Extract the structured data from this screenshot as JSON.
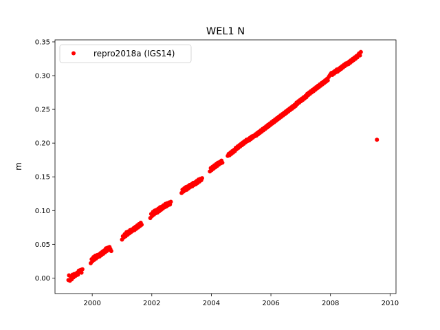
{
  "chart_data": {
    "type": "scatter",
    "title": "WEL1 N",
    "xlabel": "",
    "ylabel": "m",
    "xlim": [
      1998.75,
      2010.2
    ],
    "ylim": [
      -0.023,
      0.353
    ],
    "xticks": [
      2000,
      2002,
      2004,
      2006,
      2008,
      2010
    ],
    "xtick_labels": [
      "2000",
      "2002",
      "2004",
      "2006",
      "2008",
      "2010"
    ],
    "yticks": [
      0.0,
      0.05,
      0.1,
      0.15,
      0.2,
      0.25,
      0.3,
      0.35
    ],
    "ytick_labels": [
      "0.00",
      "0.05",
      "0.10",
      "0.15",
      "0.20",
      "0.25",
      "0.30",
      "0.35"
    ],
    "grid": false,
    "legend_position": "top-left",
    "series": [
      {
        "name": "repro2018a (IGS14)",
        "color": "#ff0000",
        "marker": "circle",
        "points": [
          [
            1999.2,
            -0.003
          ],
          [
            1999.22,
            0.004
          ],
          [
            1999.25,
            -0.004
          ],
          [
            1999.28,
            0.002
          ],
          [
            1999.31,
            -0.002
          ],
          [
            1999.34,
            0.005
          ],
          [
            1999.37,
            0.001
          ],
          [
            1999.4,
            0.006
          ],
          [
            1999.43,
            0.003
          ],
          [
            1999.46,
            0.004
          ],
          [
            1999.49,
            0.008
          ],
          [
            1999.52,
            0.005
          ],
          [
            1999.55,
            0.011
          ],
          [
            1999.58,
            0.009
          ],
          [
            1999.61,
            0.012
          ],
          [
            1999.64,
            0.008
          ],
          [
            1999.67,
            0.013
          ],
          [
            1999.95,
            0.022
          ],
          [
            1999.98,
            0.028
          ],
          [
            2000.01,
            0.025
          ],
          [
            2000.04,
            0.031
          ],
          [
            2000.07,
            0.027
          ],
          [
            2000.1,
            0.033
          ],
          [
            2000.13,
            0.029
          ],
          [
            2000.16,
            0.034
          ],
          [
            2000.19,
            0.031
          ],
          [
            2000.22,
            0.035
          ],
          [
            2000.25,
            0.032
          ],
          [
            2000.28,
            0.037
          ],
          [
            2000.31,
            0.034
          ],
          [
            2000.34,
            0.039
          ],
          [
            2000.37,
            0.036
          ],
          [
            2000.4,
            0.041
          ],
          [
            2000.43,
            0.038
          ],
          [
            2000.46,
            0.044
          ],
          [
            2000.49,
            0.04
          ],
          [
            2000.52,
            0.045
          ],
          [
            2000.55,
            0.042
          ],
          [
            2000.58,
            0.046
          ],
          [
            2000.61,
            0.043
          ],
          [
            2000.64,
            0.04
          ],
          [
            2001.0,
            0.057
          ],
          [
            2001.03,
            0.062
          ],
          [
            2001.06,
            0.06
          ],
          [
            2001.09,
            0.065
          ],
          [
            2001.12,
            0.062
          ],
          [
            2001.15,
            0.068
          ],
          [
            2001.18,
            0.064
          ],
          [
            2001.21,
            0.069
          ],
          [
            2001.24,
            0.066
          ],
          [
            2001.27,
            0.071
          ],
          [
            2001.3,
            0.068
          ],
          [
            2001.33,
            0.072
          ],
          [
            2001.36,
            0.07
          ],
          [
            2001.39,
            0.074
          ],
          [
            2001.42,
            0.071
          ],
          [
            2001.45,
            0.076
          ],
          [
            2001.48,
            0.073
          ],
          [
            2001.51,
            0.078
          ],
          [
            2001.54,
            0.075
          ],
          [
            2001.57,
            0.08
          ],
          [
            2001.6,
            0.077
          ],
          [
            2001.63,
            0.082
          ],
          [
            2001.66,
            0.079
          ],
          [
            2001.95,
            0.089
          ],
          [
            2001.98,
            0.095
          ],
          [
            2002.01,
            0.092
          ],
          [
            2002.04,
            0.098
          ],
          [
            2002.07,
            0.094
          ],
          [
            2002.1,
            0.1
          ],
          [
            2002.13,
            0.096
          ],
          [
            2002.16,
            0.101
          ],
          [
            2002.19,
            0.097
          ],
          [
            2002.22,
            0.103
          ],
          [
            2002.25,
            0.099
          ],
          [
            2002.28,
            0.105
          ],
          [
            2002.31,
            0.101
          ],
          [
            2002.34,
            0.106
          ],
          [
            2002.37,
            0.103
          ],
          [
            2002.4,
            0.108
          ],
          [
            2002.43,
            0.105
          ],
          [
            2002.46,
            0.11
          ],
          [
            2002.49,
            0.106
          ],
          [
            2002.52,
            0.111
          ],
          [
            2002.55,
            0.108
          ],
          [
            2002.58,
            0.112
          ],
          [
            2002.61,
            0.109
          ],
          [
            2002.64,
            0.113
          ],
          [
            2003.0,
            0.126
          ],
          [
            2003.03,
            0.131
          ],
          [
            2003.06,
            0.128
          ],
          [
            2003.09,
            0.133
          ],
          [
            2003.12,
            0.13
          ],
          [
            2003.15,
            0.135
          ],
          [
            2003.18,
            0.131
          ],
          [
            2003.21,
            0.136
          ],
          [
            2003.24,
            0.133
          ],
          [
            2003.27,
            0.138
          ],
          [
            2003.3,
            0.135
          ],
          [
            2003.33,
            0.139
          ],
          [
            2003.36,
            0.136
          ],
          [
            2003.39,
            0.141
          ],
          [
            2003.42,
            0.138
          ],
          [
            2003.45,
            0.142
          ],
          [
            2003.48,
            0.139
          ],
          [
            2003.51,
            0.144
          ],
          [
            2003.54,
            0.141
          ],
          [
            2003.57,
            0.146
          ],
          [
            2003.6,
            0.143
          ],
          [
            2003.63,
            0.147
          ],
          [
            2003.66,
            0.145
          ],
          [
            2003.69,
            0.148
          ],
          [
            2003.95,
            0.158
          ],
          [
            2003.98,
            0.163
          ],
          [
            2004.01,
            0.16
          ],
          [
            2004.04,
            0.165
          ],
          [
            2004.07,
            0.162
          ],
          [
            2004.1,
            0.167
          ],
          [
            2004.13,
            0.164
          ],
          [
            2004.16,
            0.169
          ],
          [
            2004.19,
            0.166
          ],
          [
            2004.22,
            0.171
          ],
          [
            2004.25,
            0.168
          ],
          [
            2004.28,
            0.172
          ],
          [
            2004.31,
            0.17
          ],
          [
            2004.34,
            0.174
          ],
          [
            2004.37,
            0.171
          ],
          [
            2004.55,
            0.181
          ],
          [
            2004.58,
            0.184
          ],
          [
            2004.61,
            0.182
          ],
          [
            2004.64,
            0.186
          ],
          [
            2004.67,
            0.184
          ],
          [
            2004.7,
            0.188
          ],
          [
            2004.73,
            0.186
          ],
          [
            2004.76,
            0.19
          ],
          [
            2004.79,
            0.188
          ],
          [
            2004.82,
            0.193
          ],
          [
            2004.85,
            0.191
          ],
          [
            2004.88,
            0.195
          ],
          [
            2004.91,
            0.193
          ],
          [
            2004.94,
            0.197
          ],
          [
            2004.97,
            0.195
          ],
          [
            2005.0,
            0.199
          ],
          [
            2005.03,
            0.197
          ],
          [
            2005.06,
            0.201
          ],
          [
            2005.09,
            0.199
          ],
          [
            2005.12,
            0.203
          ],
          [
            2005.15,
            0.201
          ],
          [
            2005.18,
            0.205
          ],
          [
            2005.21,
            0.203
          ],
          [
            2005.24,
            0.206
          ],
          [
            2005.27,
            0.204
          ],
          [
            2005.3,
            0.208
          ],
          [
            2005.33,
            0.206
          ],
          [
            2005.36,
            0.21
          ],
          [
            2005.39,
            0.208
          ],
          [
            2005.42,
            0.211
          ],
          [
            2005.45,
            0.21
          ],
          [
            2005.48,
            0.213
          ],
          [
            2005.51,
            0.211
          ],
          [
            2005.54,
            0.215
          ],
          [
            2005.57,
            0.213
          ],
          [
            2005.6,
            0.217
          ],
          [
            2005.63,
            0.215
          ],
          [
            2005.66,
            0.219
          ],
          [
            2005.69,
            0.217
          ],
          [
            2005.72,
            0.221
          ],
          [
            2005.75,
            0.219
          ],
          [
            2005.78,
            0.223
          ],
          [
            2005.81,
            0.221
          ],
          [
            2005.84,
            0.225
          ],
          [
            2005.87,
            0.223
          ],
          [
            2005.9,
            0.227
          ],
          [
            2005.93,
            0.225
          ],
          [
            2005.96,
            0.229
          ],
          [
            2005.99,
            0.227
          ],
          [
            2006.02,
            0.231
          ],
          [
            2006.05,
            0.229
          ],
          [
            2006.08,
            0.233
          ],
          [
            2006.11,
            0.231
          ],
          [
            2006.14,
            0.235
          ],
          [
            2006.17,
            0.233
          ],
          [
            2006.2,
            0.237
          ],
          [
            2006.23,
            0.235
          ],
          [
            2006.26,
            0.239
          ],
          [
            2006.29,
            0.237
          ],
          [
            2006.32,
            0.241
          ],
          [
            2006.35,
            0.239
          ],
          [
            2006.38,
            0.243
          ],
          [
            2006.41,
            0.241
          ],
          [
            2006.44,
            0.245
          ],
          [
            2006.47,
            0.243
          ],
          [
            2006.5,
            0.247
          ],
          [
            2006.53,
            0.245
          ],
          [
            2006.56,
            0.249
          ],
          [
            2006.59,
            0.247
          ],
          [
            2006.62,
            0.251
          ],
          [
            2006.65,
            0.249
          ],
          [
            2006.68,
            0.253
          ],
          [
            2006.71,
            0.251
          ],
          [
            2006.74,
            0.255
          ],
          [
            2006.77,
            0.253
          ],
          [
            2006.8,
            0.257
          ],
          [
            2006.83,
            0.255
          ],
          [
            2006.86,
            0.26
          ],
          [
            2006.89,
            0.258
          ],
          [
            2006.92,
            0.262
          ],
          [
            2006.95,
            0.26
          ],
          [
            2006.98,
            0.264
          ],
          [
            2007.01,
            0.262
          ],
          [
            2007.04,
            0.266
          ],
          [
            2007.07,
            0.264
          ],
          [
            2007.1,
            0.268
          ],
          [
            2007.13,
            0.266
          ],
          [
            2007.16,
            0.27
          ],
          [
            2007.19,
            0.268
          ],
          [
            2007.22,
            0.273
          ],
          [
            2007.25,
            0.271
          ],
          [
            2007.28,
            0.275
          ],
          [
            2007.31,
            0.273
          ],
          [
            2007.34,
            0.277
          ],
          [
            2007.37,
            0.275
          ],
          [
            2007.4,
            0.279
          ],
          [
            2007.43,
            0.277
          ],
          [
            2007.46,
            0.281
          ],
          [
            2007.49,
            0.279
          ],
          [
            2007.52,
            0.283
          ],
          [
            2007.55,
            0.281
          ],
          [
            2007.58,
            0.285
          ],
          [
            2007.61,
            0.283
          ],
          [
            2007.64,
            0.287
          ],
          [
            2007.67,
            0.285
          ],
          [
            2007.7,
            0.289
          ],
          [
            2007.73,
            0.287
          ],
          [
            2007.76,
            0.291
          ],
          [
            2007.79,
            0.289
          ],
          [
            2007.82,
            0.293
          ],
          [
            2007.85,
            0.291
          ],
          [
            2007.88,
            0.295
          ],
          [
            2007.91,
            0.293
          ],
          [
            2007.94,
            0.298
          ],
          [
            2007.97,
            0.3
          ],
          [
            2008.0,
            0.302
          ],
          [
            2008.03,
            0.304
          ],
          [
            2008.06,
            0.301
          ],
          [
            2008.09,
            0.305
          ],
          [
            2008.12,
            0.303
          ],
          [
            2008.15,
            0.307
          ],
          [
            2008.18,
            0.305
          ],
          [
            2008.21,
            0.309
          ],
          [
            2008.24,
            0.306
          ],
          [
            2008.27,
            0.31
          ],
          [
            2008.3,
            0.308
          ],
          [
            2008.33,
            0.312
          ],
          [
            2008.36,
            0.31
          ],
          [
            2008.39,
            0.314
          ],
          [
            2008.42,
            0.312
          ],
          [
            2008.45,
            0.316
          ],
          [
            2008.48,
            0.314
          ],
          [
            2008.51,
            0.318
          ],
          [
            2008.54,
            0.316
          ],
          [
            2008.57,
            0.319
          ],
          [
            2008.6,
            0.317
          ],
          [
            2008.63,
            0.321
          ],
          [
            2008.66,
            0.319
          ],
          [
            2008.69,
            0.323
          ],
          [
            2008.72,
            0.321
          ],
          [
            2008.75,
            0.325
          ],
          [
            2008.78,
            0.323
          ],
          [
            2008.81,
            0.327
          ],
          [
            2008.84,
            0.325
          ],
          [
            2008.87,
            0.329
          ],
          [
            2008.9,
            0.327
          ],
          [
            2008.93,
            0.331
          ],
          [
            2008.96,
            0.333
          ],
          [
            2008.99,
            0.33
          ],
          [
            2009.02,
            0.335
          ],
          [
            2009.56,
            0.205
          ]
        ]
      }
    ]
  }
}
